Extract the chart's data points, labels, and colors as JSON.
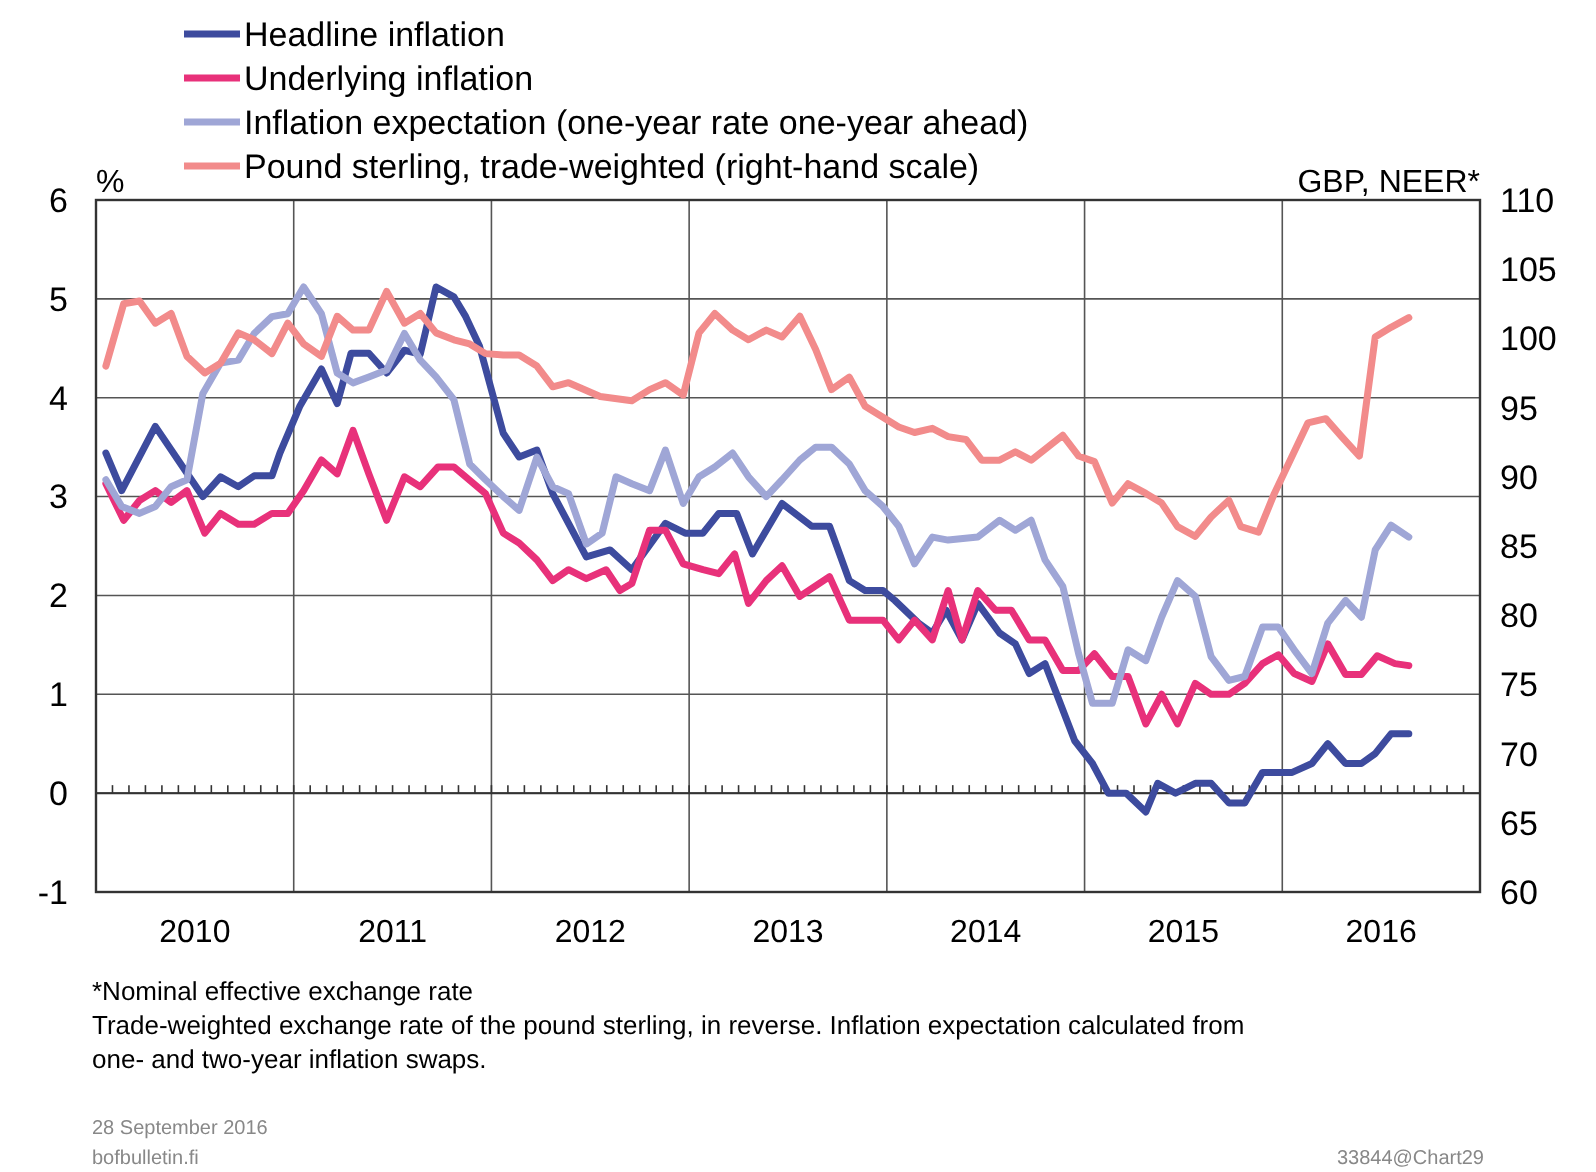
{
  "chart_data": {
    "type": "line",
    "ylabel": "%",
    "y2label": "GBP, NEER*",
    "xlim": [
      2010,
      2017
    ],
    "xticks": [
      {
        "value": 2010.5,
        "label": "2010"
      },
      {
        "value": 2011,
        "label": null
      },
      {
        "value": 2011.5,
        "label": "2011"
      },
      {
        "value": 2012,
        "label": null
      },
      {
        "value": 2012.5,
        "label": "2012"
      },
      {
        "value": 2013,
        "label": null
      },
      {
        "value": 2013.5,
        "label": "2013"
      },
      {
        "value": 2014,
        "label": null
      },
      {
        "value": 2014.5,
        "label": "2014"
      },
      {
        "value": 2015,
        "label": null
      },
      {
        "value": 2015.5,
        "label": "2015"
      },
      {
        "value": 2016,
        "label": null
      },
      {
        "value": 2016.5,
        "label": "2016"
      }
    ],
    "ylim": [
      -1,
      6
    ],
    "yticks": [
      -1,
      0,
      1,
      2,
      3,
      4,
      5,
      6
    ],
    "y2lim": [
      60,
      110
    ],
    "y2ticks": [
      60,
      65,
      70,
      75,
      80,
      85,
      90,
      95,
      100,
      105,
      110
    ],
    "grid": true,
    "legend": "top left",
    "line_style": "solid",
    "marker": "none",
    "ref_lines": [
      {
        "axis": "y",
        "value": 0
      }
    ],
    "series": [
      {
        "name": "Headline inflation",
        "color": "#3d4b9e",
        "x": [
          2010.05,
          2010.13,
          2010.3,
          2010.54,
          2010.63,
          2010.72,
          2010.8,
          2010.89,
          2010.93,
          2011.03,
          2011.14,
          2011.22,
          2011.29,
          2011.38,
          2011.47,
          2011.56,
          2011.64,
          2011.72,
          2011.81,
          2011.87,
          2011.94,
          2012.06,
          2012.14,
          2012.23,
          2012.31,
          2012.48,
          2012.6,
          2012.71,
          2012.88,
          2012.98,
          2013.07,
          2013.15,
          2013.24,
          2013.32,
          2013.47,
          2013.62,
          2013.71,
          2013.81,
          2013.89,
          2013.98,
          2014.04,
          2014.16,
          2014.23,
          2014.3,
          2014.38,
          2014.46,
          2014.57,
          2014.65,
          2014.72,
          2014.8,
          2014.95,
          2015.04,
          2015.12,
          2015.21,
          2015.31,
          2015.37,
          2015.46,
          2015.56,
          2015.64,
          2015.73,
          2015.81,
          2015.9,
          2016.05,
          2016.15,
          2016.23,
          2016.32,
          2016.4,
          2016.47,
          2016.55,
          2016.64
        ],
        "values": [
          3.44,
          3.06,
          3.71,
          3.0,
          3.2,
          3.1,
          3.21,
          3.21,
          3.44,
          3.91,
          4.29,
          3.94,
          4.45,
          4.45,
          4.25,
          4.48,
          4.44,
          5.12,
          5.02,
          4.82,
          4.52,
          3.64,
          3.4,
          3.47,
          3.03,
          2.39,
          2.46,
          2.26,
          2.73,
          2.63,
          2.63,
          2.83,
          2.83,
          2.42,
          2.93,
          2.7,
          2.7,
          2.15,
          2.05,
          2.05,
          1.95,
          1.72,
          1.62,
          1.85,
          1.55,
          1.92,
          1.62,
          1.51,
          1.21,
          1.31,
          0.53,
          0.3,
          0.0,
          0.0,
          -0.19,
          0.1,
          0.0,
          0.1,
          0.1,
          -0.1,
          -0.1,
          0.21,
          0.21,
          0.3,
          0.5,
          0.3,
          0.3,
          0.4,
          0.6,
          0.6
        ]
      },
      {
        "name": "Underlying inflation",
        "color": "#e8317a",
        "x": [
          2010.05,
          2010.14,
          2010.22,
          2010.3,
          2010.38,
          2010.46,
          2010.55,
          2010.63,
          2010.72,
          2010.8,
          2010.89,
          2010.97,
          2011.05,
          2011.14,
          2011.22,
          2011.3,
          2011.38,
          2011.47,
          2011.56,
          2011.64,
          2011.73,
          2011.81,
          2011.97,
          2012.06,
          2012.14,
          2012.23,
          2012.31,
          2012.39,
          2012.48,
          2012.58,
          2012.65,
          2012.71,
          2012.8,
          2012.88,
          2012.97,
          2013.07,
          2013.15,
          2013.23,
          2013.3,
          2013.39,
          2013.47,
          2013.56,
          2013.71,
          2013.81,
          2013.98,
          2014.06,
          2014.14,
          2014.23,
          2014.31,
          2014.38,
          2014.46,
          2014.55,
          2014.63,
          2014.72,
          2014.8,
          2014.89,
          2014.97,
          2015.05,
          2015.14,
          2015.22,
          2015.31,
          2015.39,
          2015.47,
          2015.56,
          2015.64,
          2015.73,
          2015.81,
          2015.9,
          2015.98,
          2016.06,
          2016.15,
          2016.23,
          2016.32,
          2016.4,
          2016.48,
          2016.57,
          2016.64
        ],
        "values": [
          3.13,
          2.76,
          2.96,
          3.06,
          2.94,
          3.06,
          2.63,
          2.83,
          2.72,
          2.72,
          2.83,
          2.83,
          3.06,
          3.37,
          3.23,
          3.67,
          3.23,
          2.76,
          3.2,
          3.1,
          3.3,
          3.3,
          3.03,
          2.63,
          2.53,
          2.36,
          2.15,
          2.26,
          2.17,
          2.26,
          2.05,
          2.12,
          2.66,
          2.66,
          2.32,
          2.26,
          2.22,
          2.42,
          1.92,
          2.15,
          2.3,
          1.99,
          2.19,
          1.75,
          1.75,
          1.55,
          1.75,
          1.55,
          2.05,
          1.55,
          2.05,
          1.85,
          1.85,
          1.55,
          1.55,
          1.24,
          1.24,
          1.41,
          1.18,
          1.18,
          0.7,
          1.0,
          0.7,
          1.11,
          1.0,
          1.0,
          1.11,
          1.31,
          1.4,
          1.21,
          1.13,
          1.51,
          1.2,
          1.2,
          1.39,
          1.31,
          1.29
        ]
      },
      {
        "name": "Inflation expectation (one-year rate one-year ahead)",
        "color": "#9fa6d6",
        "x": [
          2010.05,
          2010.13,
          2010.22,
          2010.3,
          2010.38,
          2010.46,
          2010.54,
          2010.63,
          2010.72,
          2010.8,
          2010.89,
          2010.97,
          2011.05,
          2011.14,
          2011.22,
          2011.3,
          2011.38,
          2011.47,
          2011.56,
          2011.64,
          2011.72,
          2011.81,
          2011.89,
          2011.97,
          2012.06,
          2012.14,
          2012.23,
          2012.31,
          2012.39,
          2012.48,
          2012.56,
          2012.63,
          2012.71,
          2012.8,
          2012.88,
          2012.97,
          2013.05,
          2013.13,
          2013.22,
          2013.3,
          2013.39,
          2013.47,
          2013.56,
          2013.64,
          2013.72,
          2013.81,
          2013.89,
          2013.98,
          2014.06,
          2014.14,
          2014.23,
          2014.31,
          2014.46,
          2014.57,
          2014.65,
          2014.73,
          2014.8,
          2014.89,
          2014.97,
          2015.04,
          2015.14,
          2015.22,
          2015.31,
          2015.39,
          2015.47,
          2015.56,
          2015.64,
          2015.73,
          2015.81,
          2015.9,
          2015.98,
          2016.06,
          2016.15,
          2016.23,
          2016.32,
          2016.4,
          2016.47,
          2016.55,
          2016.64
        ],
        "values": [
          3.17,
          2.9,
          2.83,
          2.9,
          3.1,
          3.17,
          4.04,
          4.35,
          4.38,
          4.65,
          4.82,
          4.85,
          5.12,
          4.85,
          4.25,
          4.15,
          4.21,
          4.28,
          4.65,
          4.38,
          4.21,
          3.98,
          3.33,
          3.17,
          3.0,
          2.86,
          3.4,
          3.1,
          3.03,
          2.52,
          2.63,
          3.2,
          3.13,
          3.06,
          3.47,
          2.93,
          3.2,
          3.3,
          3.44,
          3.2,
          3.0,
          3.17,
          3.37,
          3.5,
          3.5,
          3.33,
          3.06,
          2.9,
          2.7,
          2.32,
          2.59,
          2.56,
          2.59,
          2.76,
          2.66,
          2.76,
          2.36,
          2.09,
          1.41,
          0.91,
          0.91,
          1.45,
          1.34,
          1.78,
          2.15,
          1.99,
          1.38,
          1.14,
          1.18,
          1.68,
          1.68,
          1.45,
          1.21,
          1.72,
          1.95,
          1.78,
          2.46,
          2.71,
          2.59
        ]
      },
      {
        "name": "Pound sterling, trade-weighted (right-hand scale)",
        "color": "#f28b8b",
        "axis": "y2",
        "x": [
          2010.05,
          2010.14,
          2010.22,
          2010.3,
          2010.38,
          2010.46,
          2010.55,
          2010.63,
          2010.72,
          2010.8,
          2010.89,
          2010.97,
          2011.05,
          2011.14,
          2011.22,
          2011.3,
          2011.38,
          2011.47,
          2011.56,
          2011.64,
          2011.72,
          2011.81,
          2011.89,
          2011.97,
          2012.06,
          2012.14,
          2012.23,
          2012.31,
          2012.39,
          2012.55,
          2012.71,
          2012.8,
          2012.88,
          2012.97,
          2013.05,
          2013.13,
          2013.22,
          2013.3,
          2013.39,
          2013.47,
          2013.56,
          2013.64,
          2013.72,
          2013.81,
          2013.89,
          2013.98,
          2014.06,
          2014.14,
          2014.23,
          2014.31,
          2014.4,
          2014.48,
          2014.57,
          2014.65,
          2014.73,
          2014.89,
          2014.97,
          2015.05,
          2015.14,
          2015.22,
          2015.31,
          2015.39,
          2015.47,
          2015.56,
          2015.64,
          2015.73,
          2015.79,
          2015.88,
          2015.96,
          2016.05,
          2016.13,
          2016.22,
          2016.3,
          2016.39,
          2016.47,
          2016.55,
          2016.64
        ],
        "values": [
          98.0,
          102.5,
          102.7,
          101.1,
          101.8,
          98.7,
          97.5,
          98.2,
          100.4,
          99.9,
          98.9,
          101.1,
          99.6,
          98.7,
          101.6,
          100.6,
          100.6,
          103.4,
          101.1,
          101.8,
          100.4,
          99.9,
          99.6,
          98.9,
          98.8,
          98.8,
          98.0,
          96.5,
          96.8,
          95.8,
          95.5,
          96.3,
          96.8,
          95.9,
          100.4,
          101.8,
          100.6,
          99.9,
          100.6,
          100.1,
          101.6,
          99.2,
          96.3,
          97.2,
          95.1,
          94.3,
          93.6,
          93.2,
          93.5,
          92.9,
          92.7,
          91.2,
          91.2,
          91.8,
          91.2,
          93.0,
          91.5,
          91.1,
          88.1,
          89.5,
          88.8,
          88.1,
          86.4,
          85.7,
          87.1,
          88.3,
          86.4,
          86.0,
          88.8,
          91.5,
          93.9,
          94.2,
          92.9,
          91.5,
          100.1,
          100.8,
          101.5
        ]
      }
    ],
    "annotations": [
      "*Nominal effective exchange rate",
      "Trade-weighted exchange rate of the pound sterling, in reverse. Inflation expectation calculated from one- and two-year inflation swaps.",
      "28 September 2016",
      "bofbulletin.fi",
      "33844@Chart29"
    ]
  }
}
